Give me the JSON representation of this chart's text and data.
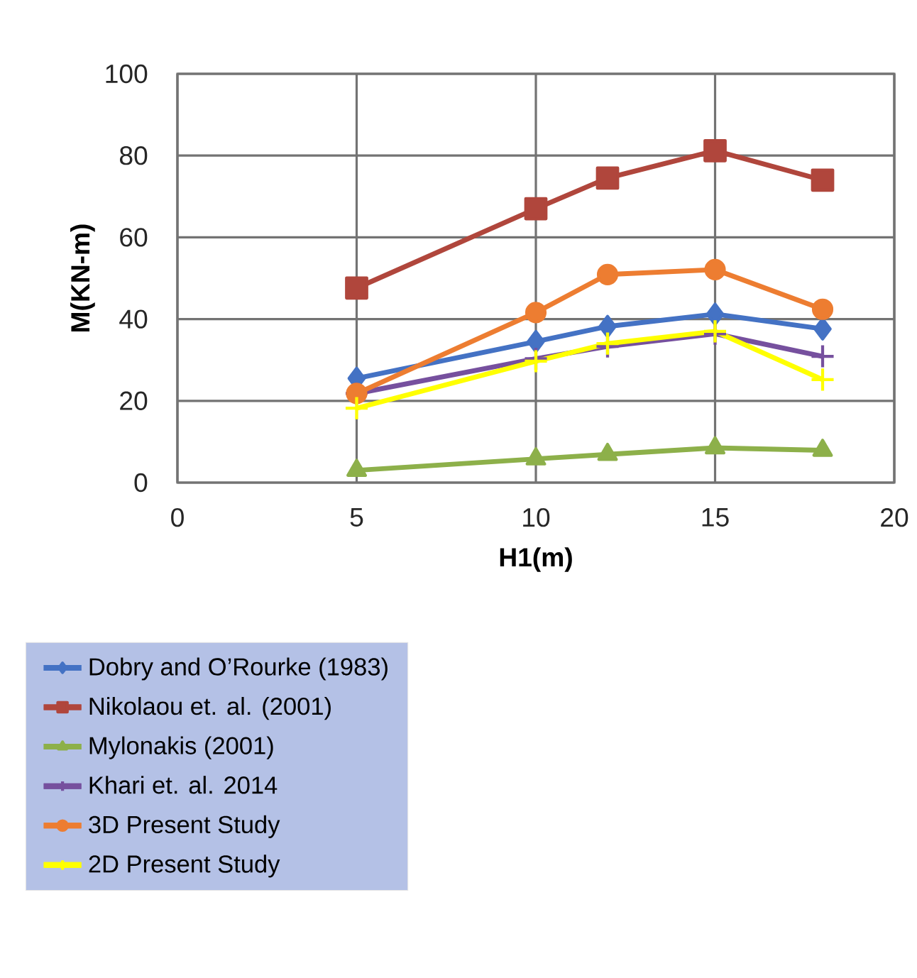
{
  "chart_data": {
    "type": "line",
    "xlabel": "H1(m)",
    "ylabel": "M(KN-m)",
    "x": [
      5,
      10,
      12,
      15,
      18
    ],
    "xlim": [
      0,
      20
    ],
    "xticks": [
      0,
      5,
      10,
      15,
      20
    ],
    "ylim": [
      0,
      100
    ],
    "yticks": [
      0,
      20,
      40,
      60,
      80,
      100
    ],
    "grid": true,
    "legend": "bottom left",
    "line_style": "solid",
    "series": [
      {
        "name": "Dobry and O’Rourke (1983)",
        "color": "#4472c4",
        "marker": "diamond",
        "values": [
          25.5,
          34.5,
          38.2,
          41.2,
          37.6
        ]
      },
      {
        "name": "Nikolaou et. al. (2001)",
        "color": "#b0463c",
        "marker": "square",
        "values": [
          47.6,
          67,
          74.5,
          81.2,
          74
        ]
      },
      {
        "name": "Mylonakis (2001)",
        "color": "#8db04a",
        "marker": "triangle",
        "values": [
          3,
          5.8,
          6.9,
          8.5,
          7.9
        ]
      },
      {
        "name": "Khari et. al. 2014",
        "color": "#76509e",
        "marker": "cross",
        "values": [
          21.8,
          30.3,
          33.3,
          36.4,
          30.9
        ]
      },
      {
        "name": "3D Present Study",
        "color": "#ed7d31",
        "marker": "circle",
        "values": [
          21.8,
          41.6,
          50.9,
          52.1,
          42.4
        ]
      },
      {
        "name": "2D Present Study",
        "color": "#ffff00",
        "marker": "cross",
        "values": [
          18.2,
          29.7,
          34,
          37,
          25.2
        ]
      }
    ]
  }
}
